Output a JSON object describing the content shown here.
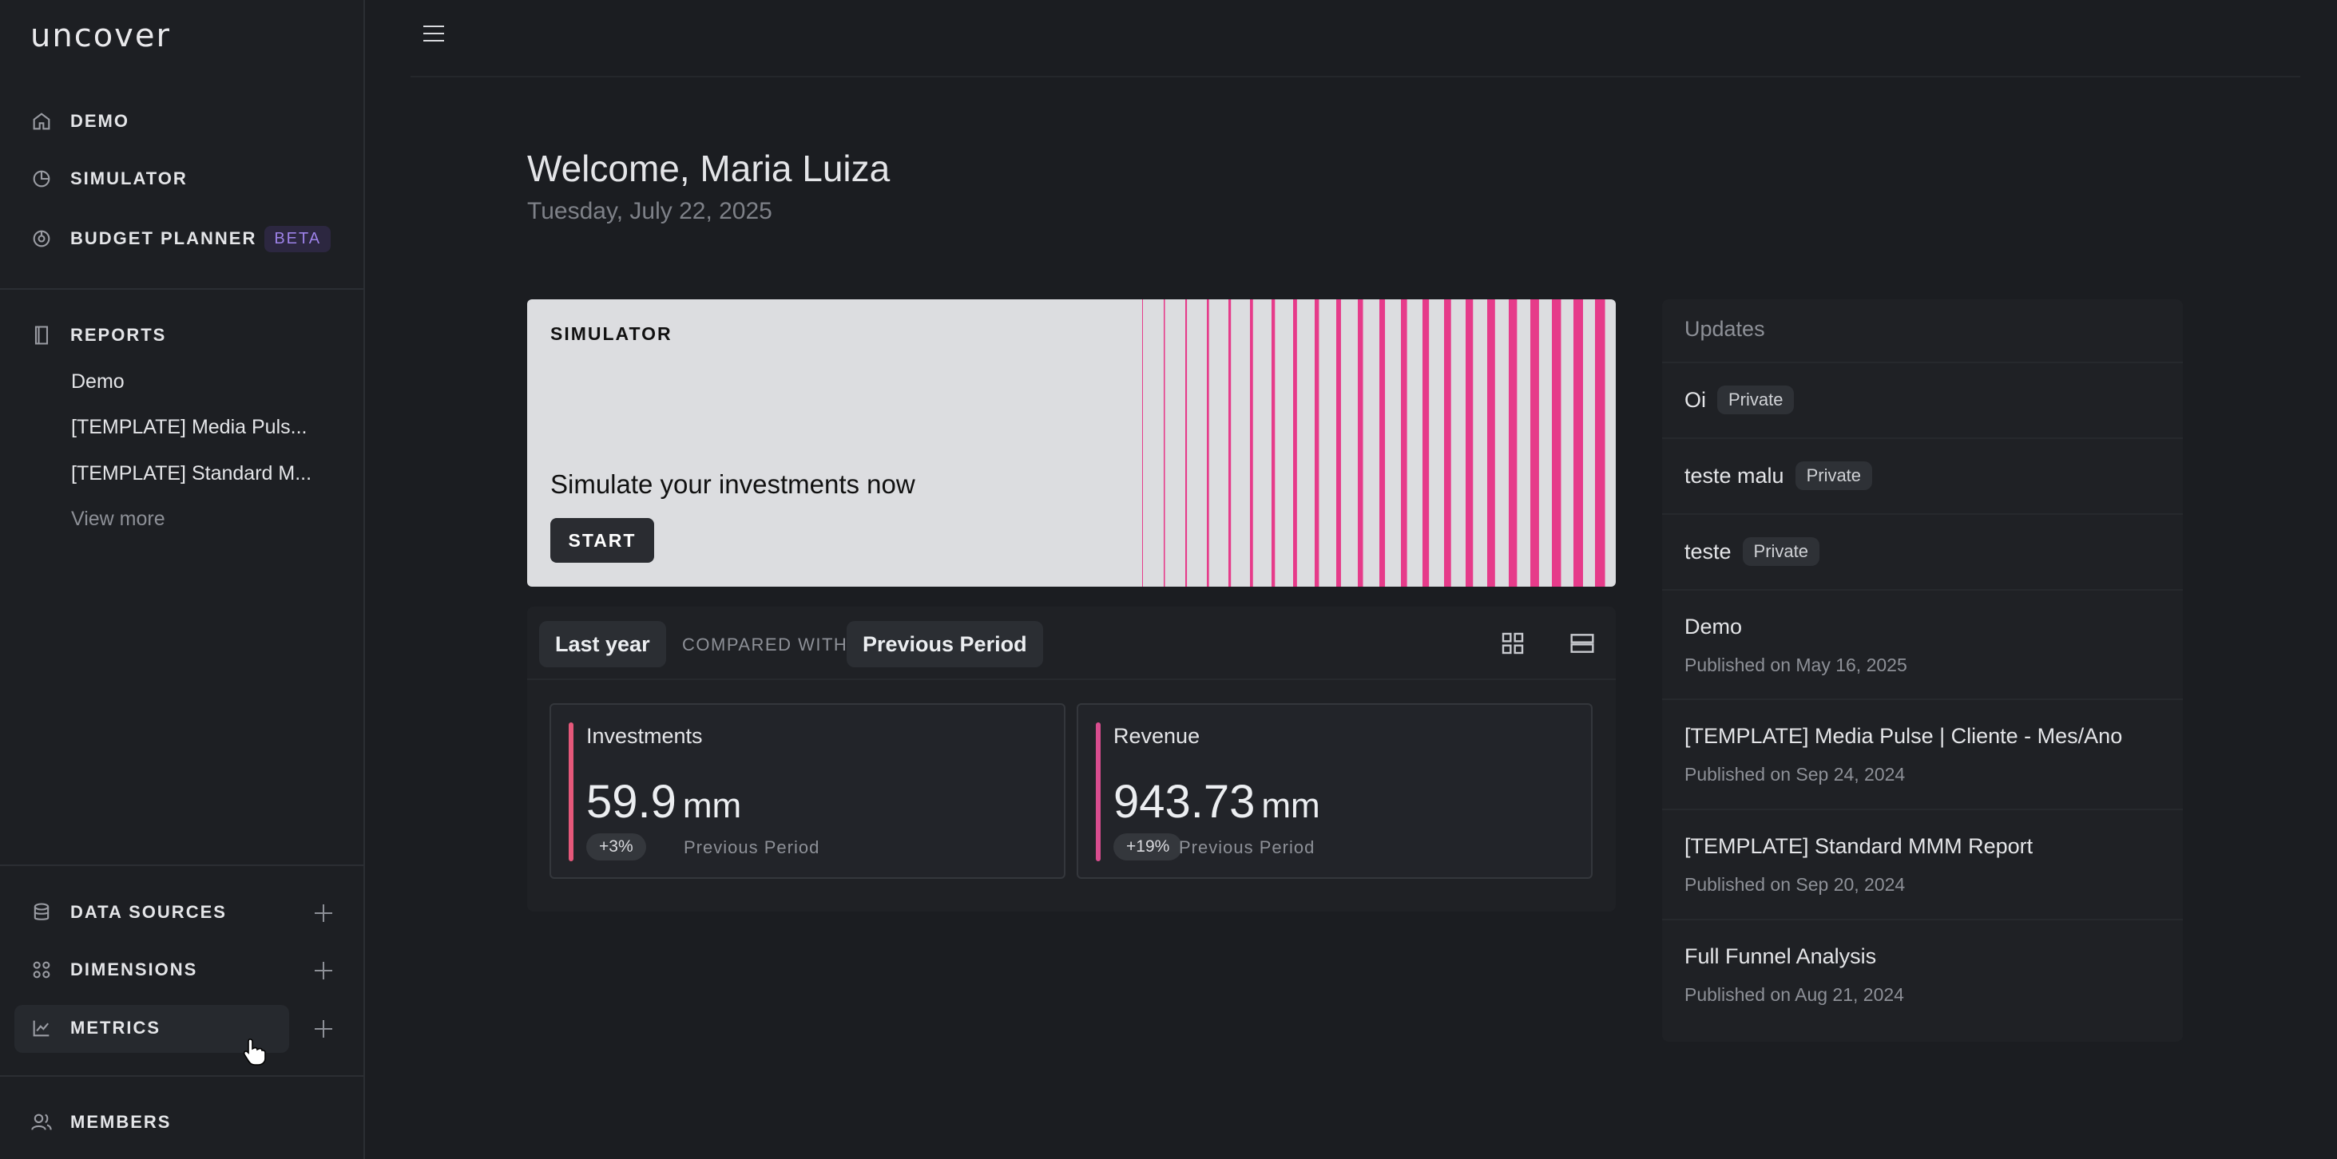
{
  "sidebar": {
    "logo": "uncover",
    "nav": [
      {
        "label": "DEMO",
        "icon": "home-icon"
      },
      {
        "label": "SIMULATOR",
        "icon": "pie-chart-icon"
      },
      {
        "label": "BUDGET PLANNER",
        "icon": "budget-icon",
        "badge": "BETA"
      }
    ],
    "reports": {
      "label": "REPORTS",
      "icon": "book-icon",
      "items": [
        "Demo",
        "[TEMPLATE] Media Puls...",
        "[TEMPLATE] Standard M..."
      ],
      "view_more": "View more"
    },
    "bottom": [
      {
        "label": "DATA SOURCES",
        "icon": "database-icon"
      },
      {
        "label": "DIMENSIONS",
        "icon": "dimensions-icon"
      },
      {
        "label": "METRICS",
        "icon": "line-chart-icon"
      }
    ],
    "members": "MEMBERS"
  },
  "main": {
    "welcome": "Welcome, Maria Luiza",
    "date": "Tuesday, July 22, 2025",
    "simulator": {
      "title": "SIMULATOR",
      "text": "Simulate your investments now",
      "button": "START",
      "accent": "#e63b8a"
    },
    "comparison": {
      "period": "Last year",
      "compared_with": "COMPARED WITH",
      "previous": "Previous Period",
      "cards": [
        {
          "name": "Investments",
          "value": "59.9",
          "unit": "mm",
          "delta": "+3%",
          "label": "Previous Period",
          "color": "#e5587a"
        },
        {
          "name": "Revenue",
          "value": "943.73",
          "unit": "mm",
          "delta": "+19%",
          "label": "Previous Period",
          "color": "#d94d8f"
        }
      ]
    }
  },
  "updates": {
    "title": "Updates",
    "items": [
      {
        "title": "Oi",
        "badge": "Private"
      },
      {
        "title": "teste malu",
        "badge": "Private"
      },
      {
        "title": "teste",
        "badge": "Private"
      },
      {
        "title": "Demo",
        "sub": "Published on May 16, 2025"
      },
      {
        "title": "[TEMPLATE] Media Pulse | Cliente - Mes/Ano",
        "sub": "Published on Sep 24, 2024"
      },
      {
        "title": "[TEMPLATE] Standard MMM Report",
        "sub": "Published on Sep 20, 2024"
      },
      {
        "title": "Full Funnel Analysis",
        "sub": "Published on Aug 21, 2024"
      }
    ]
  }
}
